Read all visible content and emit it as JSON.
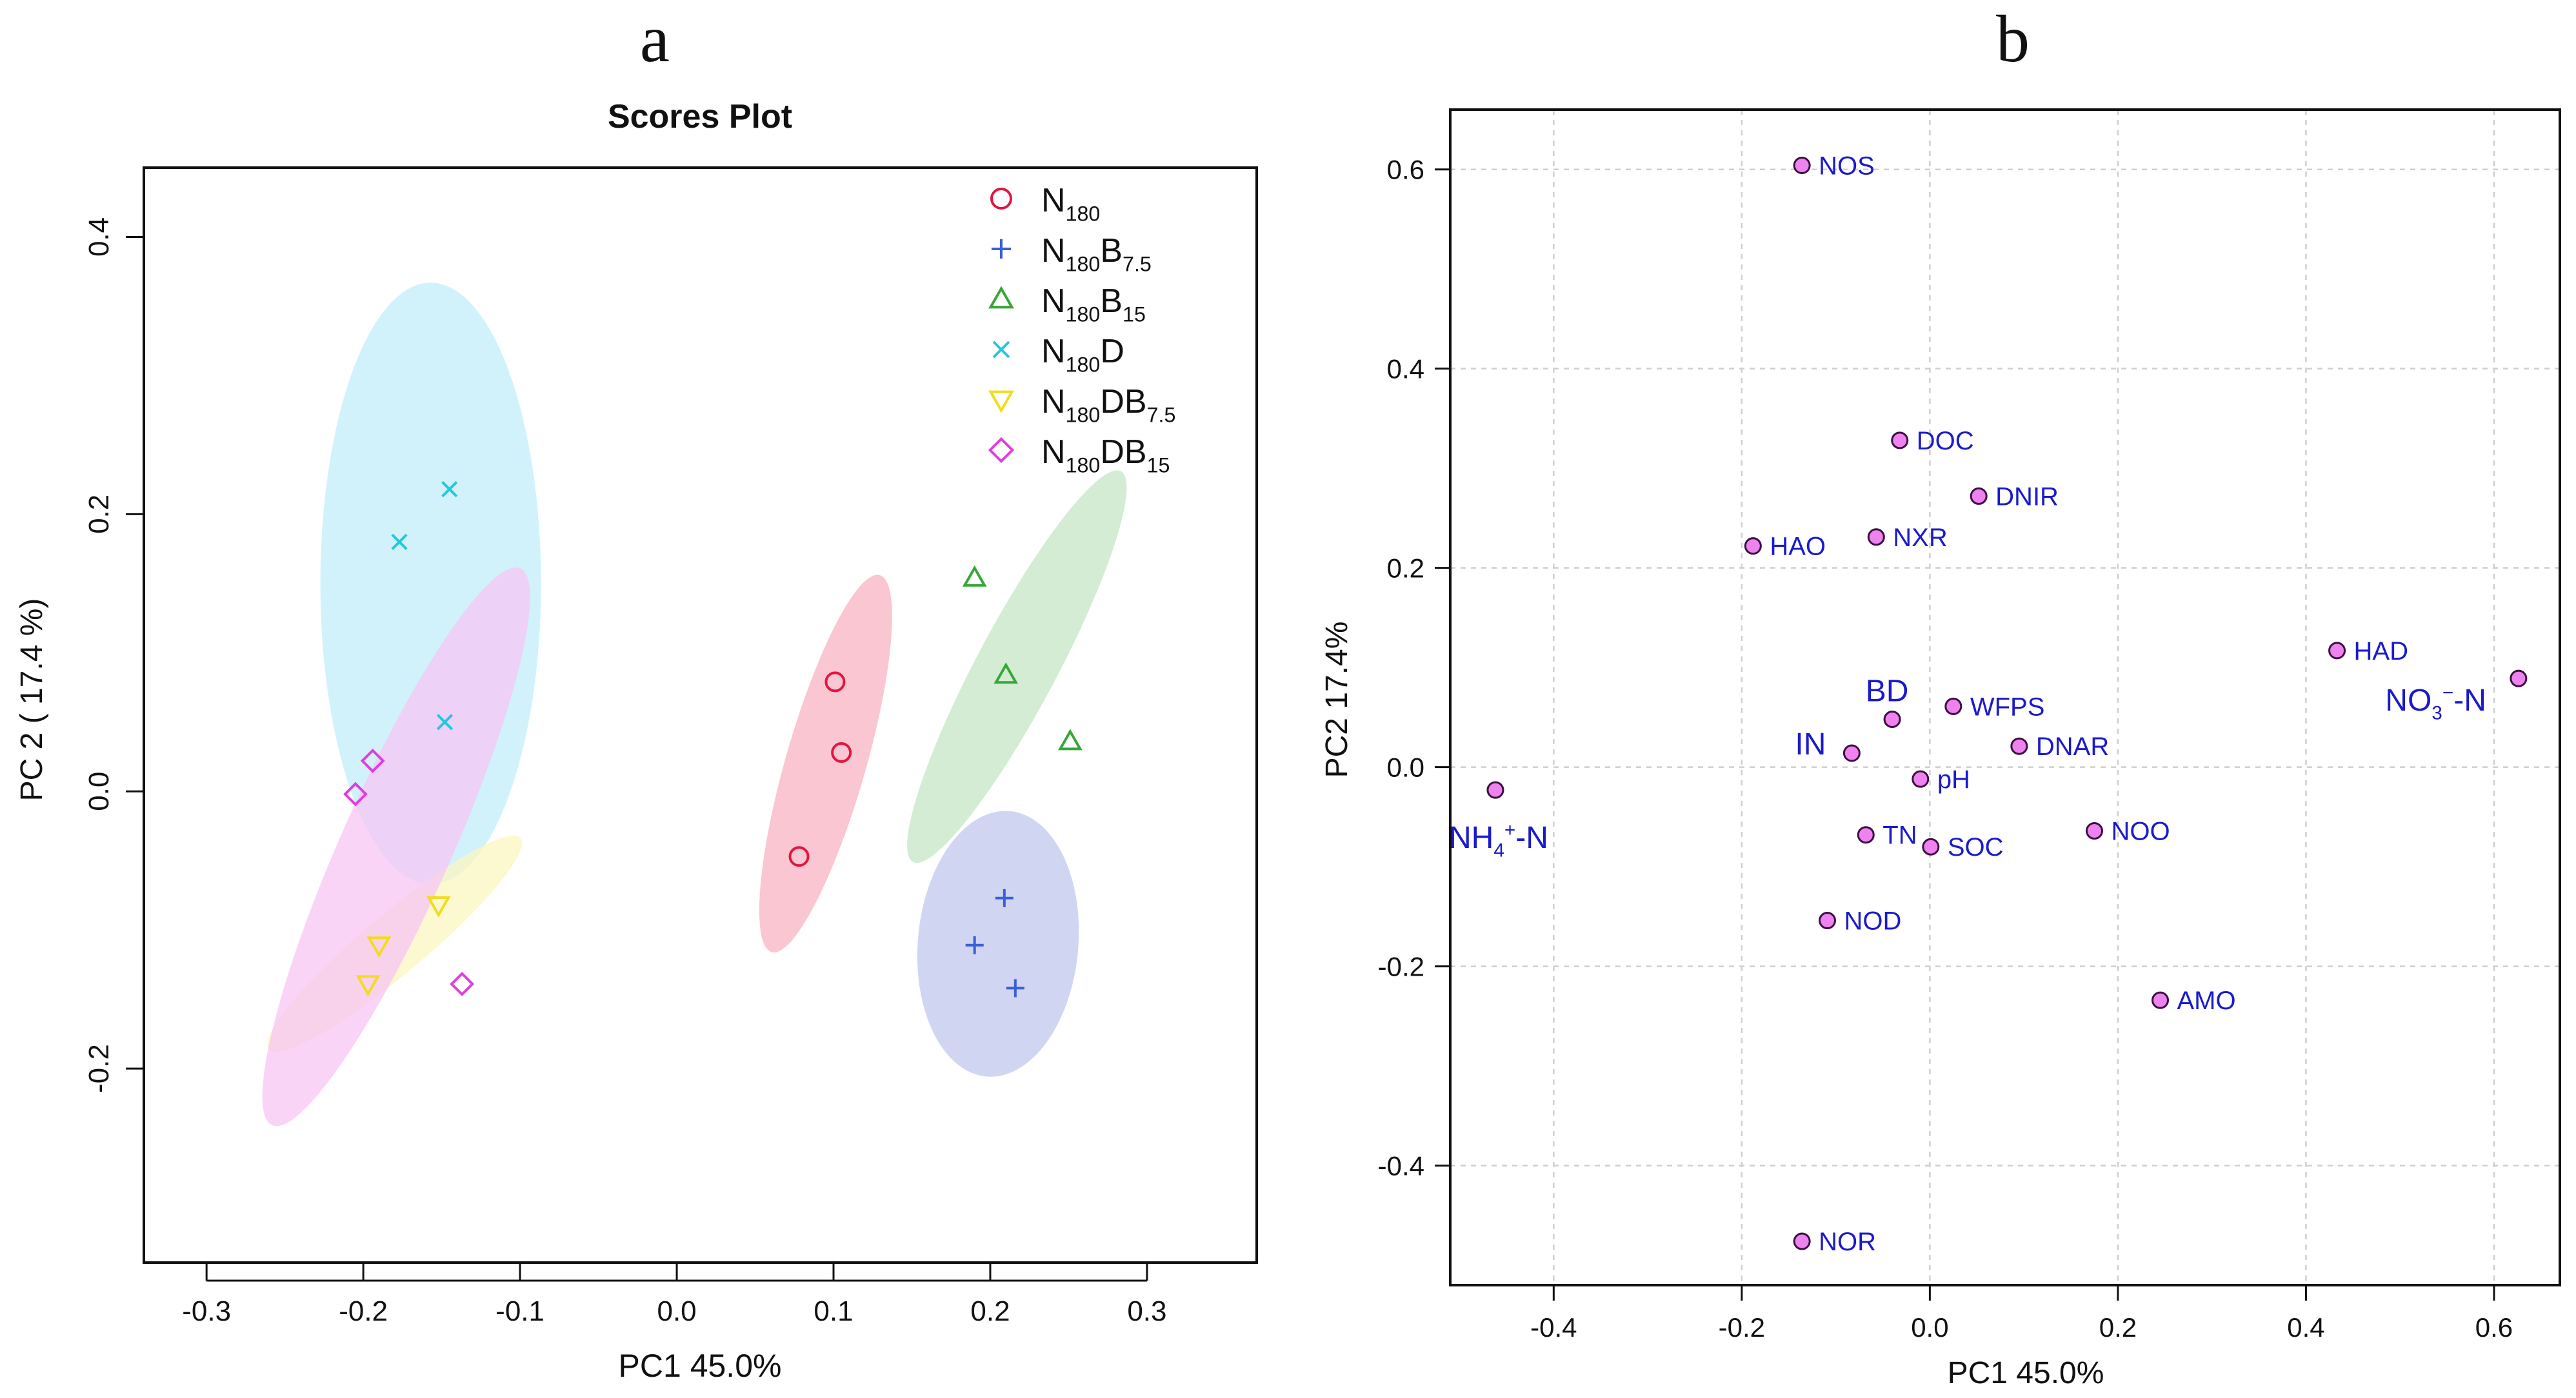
{
  "panels": {
    "a": {
      "letter": "a"
    },
    "b": {
      "letter": "b"
    }
  },
  "chart_data": [
    {
      "type": "scatter",
      "title": "Scores Plot",
      "xlabel": "PC1 45.0%",
      "ylabel": "PC 2 ( 17.4 %)",
      "xlim": [
        -0.34,
        0.37
      ],
      "ylim": [
        -0.34,
        0.45
      ],
      "xticks": [
        -0.3,
        -0.2,
        -0.1,
        0.0,
        0.1,
        0.2,
        0.3
      ],
      "xtick_labels": [
        "-0.3",
        "-0.2",
        "-0.1",
        "0.0",
        "0.1",
        "0.2",
        "0.3"
      ],
      "yticks": [
        -0.2,
        0.0,
        0.2,
        0.4
      ],
      "ytick_labels": [
        "-0.2",
        "0.0",
        "0.2",
        "0.4"
      ],
      "grid": false,
      "legend_position": "top-right",
      "series": [
        {
          "name": "N180",
          "name_main": "N",
          "name_parts": [
            [
              "180",
              "sub"
            ]
          ],
          "marker": "circle",
          "color": "#e2163f",
          "fill": "#f7b3c2",
          "points": [
            [
              0.101,
              0.079
            ],
            [
              0.105,
              0.028
            ],
            [
              0.078,
              -0.047
            ]
          ],
          "ellipse": {
            "cx": 0.095,
            "cy": 0.02,
            "rx": 0.14,
            "ry": 0.016,
            "angle_deg": 74
          }
        },
        {
          "name": "N180B7.5",
          "name_main": "N",
          "name_parts": [
            [
              "180",
              "sub"
            ],
            [
              "B",
              "main"
            ],
            [
              "7.5",
              "sub"
            ]
          ],
          "marker": "plus",
          "color": "#3b5fd8",
          "fill": "#c0c8ee",
          "points": [
            [
              0.209,
              -0.077
            ],
            [
              0.19,
              -0.111
            ],
            [
              0.216,
              -0.142
            ]
          ],
          "ellipse": {
            "cx": 0.205,
            "cy": -0.11,
            "rx": 0.096,
            "ry": 0.032,
            "angle_deg": 85
          }
        },
        {
          "name": "N180B15",
          "name_main": "N",
          "name_parts": [
            [
              "180",
              "sub"
            ],
            [
              "B",
              "main"
            ],
            [
              "15",
              "sub"
            ]
          ],
          "marker": "triangle",
          "color": "#36a636",
          "fill": "#c6e6c6",
          "points": [
            [
              0.19,
              0.154
            ],
            [
              0.21,
              0.084
            ],
            [
              0.251,
              0.036
            ]
          ],
          "ellipse": {
            "cx": 0.217,
            "cy": 0.09,
            "rx": 0.155,
            "ry": 0.016,
            "angle_deg": 62
          }
        },
        {
          "name": "N180D",
          "name_main": "N",
          "name_parts": [
            [
              "180",
              "sub"
            ],
            [
              "D",
              "main"
            ]
          ],
          "marker": "x",
          "color": "#22c8e0",
          "fill": "#c2eefa",
          "points": [
            [
              -0.145,
              0.218
            ],
            [
              -0.177,
              0.18
            ],
            [
              -0.148,
              0.05
            ]
          ],
          "ellipse": {
            "cx": -0.157,
            "cy": 0.15,
            "rx": 0.217,
            "ry": 0.044,
            "angle_deg": 90
          }
        },
        {
          "name": "N180DB7.5",
          "name_main": "N",
          "name_parts": [
            [
              "180",
              "sub"
            ],
            [
              "DB",
              "main"
            ],
            [
              "7.5",
              "sub"
            ]
          ],
          "marker": "triangle-down",
          "color": "#f2dc1c",
          "fill": "#fbf5c0",
          "points": [
            [
              -0.152,
              -0.082
            ],
            [
              -0.19,
              -0.111
            ],
            [
              -0.197,
              -0.139
            ]
          ],
          "ellipse": {
            "cx": -0.18,
            "cy": -0.11,
            "rx": 0.11,
            "ry": 0.012,
            "angle_deg": 40
          }
        },
        {
          "name": "N180DB15",
          "name_main": "N",
          "name_parts": [
            [
              "180",
              "sub"
            ],
            [
              "DB",
              "main"
            ],
            [
              "15",
              "sub"
            ]
          ],
          "marker": "diamond",
          "color": "#e23ce0",
          "fill": "#f7c6f4",
          "points": [
            [
              -0.194,
              0.022
            ],
            [
              -0.205,
              -0.002
            ],
            [
              -0.137,
              -0.139
            ]
          ],
          "ellipse": {
            "cx": -0.179,
            "cy": -0.04,
            "rx": 0.215,
            "ry": 0.022,
            "angle_deg": 66
          }
        }
      ]
    },
    {
      "type": "scatter",
      "title": "",
      "xlabel": "PC1 45.0%",
      "ylabel": "PC2 17.4%",
      "xlim": [
        -0.51,
        0.67
      ],
      "ylim": [
        -0.52,
        0.66
      ],
      "xticks": [
        -0.4,
        -0.2,
        0.0,
        0.2,
        0.4,
        0.6
      ],
      "xtick_labels": [
        "-0.4",
        "-0.2",
        "0.0",
        "0.2",
        "0.4",
        "0.6"
      ],
      "yticks": [
        -0.4,
        -0.2,
        0.0,
        0.2,
        0.4,
        0.6
      ],
      "ytick_labels": [
        "-0.4",
        "-0.2",
        "0.0",
        "0.2",
        "0.4",
        "0.6"
      ],
      "grid": true,
      "point_color": "#ee82ee",
      "label_color": "#1a1acd",
      "points": [
        {
          "label": "NOS",
          "x": -0.136,
          "y": 0.604,
          "pos": "right"
        },
        {
          "label": "DOC",
          "x": -0.032,
          "y": 0.328,
          "pos": "right"
        },
        {
          "label": "DNIR",
          "x": 0.052,
          "y": 0.272,
          "pos": "right"
        },
        {
          "label": "HAO",
          "x": -0.188,
          "y": 0.222,
          "pos": "right"
        },
        {
          "label": "NXR",
          "x": -0.057,
          "y": 0.231,
          "pos": "right"
        },
        {
          "label": "HAD",
          "x": 0.433,
          "y": 0.117,
          "pos": "right"
        },
        {
          "label": "NO₃⁻-N",
          "label_main": "NO",
          "label_parts": [
            [
              "3",
              "sub"
            ],
            [
              "−",
              "sup"
            ],
            [
              "-N",
              "main"
            ]
          ],
          "x": 0.626,
          "y": 0.089,
          "pos": "below-left",
          "big": true
        },
        {
          "label": "BD",
          "x": -0.04,
          "y": 0.048,
          "pos": "above-left",
          "big": true
        },
        {
          "label": "WFPS",
          "x": 0.025,
          "y": 0.061,
          "pos": "right"
        },
        {
          "label": "IN",
          "x": -0.083,
          "y": 0.014,
          "pos": "left",
          "big": true
        },
        {
          "label": "DNAR",
          "x": 0.095,
          "y": 0.021,
          "pos": "right"
        },
        {
          "label": "pH",
          "x": -0.01,
          "y": -0.012,
          "pos": "right"
        },
        {
          "label": "NH₄⁺-N",
          "label_main": "NH",
          "label_parts": [
            [
              "4",
              "sub"
            ],
            [
              "+",
              "sup"
            ],
            [
              "-N",
              "main"
            ]
          ],
          "x": -0.462,
          "y": -0.023,
          "pos": "below",
          "big": true
        },
        {
          "label": "TN",
          "x": -0.068,
          "y": -0.068,
          "pos": "right"
        },
        {
          "label": "SOC",
          "x": 0.001,
          "y": -0.08,
          "pos": "right"
        },
        {
          "label": "NOO",
          "x": 0.175,
          "y": -0.064,
          "pos": "right"
        },
        {
          "label": "NOD",
          "x": -0.109,
          "y": -0.154,
          "pos": "right"
        },
        {
          "label": "AMO",
          "x": 0.245,
          "y": -0.234,
          "pos": "right"
        },
        {
          "label": "NOR",
          "x": -0.136,
          "y": -0.476,
          "pos": "right"
        }
      ]
    }
  ]
}
